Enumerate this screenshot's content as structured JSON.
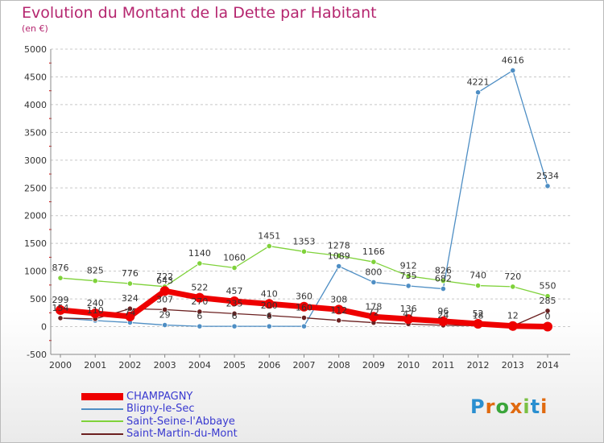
{
  "header": {
    "title": "Evolution du Montant de la Dette par Habitant",
    "subtitle": "(en €)"
  },
  "logo": {
    "text": "Proxiti"
  },
  "chart_data": {
    "type": "line",
    "title": "Evolution du Montant de la Dette par Habitant",
    "subtitle": "(en €)",
    "xlabel": "",
    "ylabel": "",
    "x": [
      "2000",
      "2001",
      "2002",
      "2003",
      "2004",
      "2005",
      "2006",
      "2007",
      "2008",
      "2009",
      "2010",
      "2011",
      "2012",
      "2013",
      "2014"
    ],
    "ylim": [
      -500,
      5000
    ],
    "yticks": [
      "-500",
      "0",
      "500",
      "1000",
      "1500",
      "2000",
      "2500",
      "3000",
      "3500",
      "4000",
      "4500",
      "5000"
    ],
    "grid": "horizontal dashed",
    "legend": "bottom-left",
    "series": [
      {
        "name": "CHAMPAGNY",
        "color": "#ee0000",
        "values": [
          299,
          240,
          184,
          643,
          522,
          457,
          410,
          360,
          308,
          178,
          136,
          96,
          52,
          12,
          0
        ],
        "labels": [
          "299",
          "240",
          "",
          "643",
          "522",
          "457",
          "410",
          "360",
          "308",
          "178",
          "136",
          "96",
          "52",
          "12",
          "0"
        ]
      },
      {
        "name": "Bligny-le-Sec",
        "color": "#4e8ec4",
        "values": [
          154,
          110,
          74,
          29,
          6,
          6,
          6,
          6,
          1089,
          800,
          735,
          682,
          4221,
          4616,
          2534
        ],
        "labels": [
          "154",
          "110",
          "74",
          "29",
          "6",
          "6",
          "6",
          "",
          "1089",
          "800",
          "735",
          "682",
          "4221",
          "4616",
          "2534"
        ]
      },
      {
        "name": "Saint-Seine-l'Abbaye",
        "color": "#7fd23a",
        "values": [
          876,
          825,
          776,
          722,
          1140,
          1060,
          1451,
          1353,
          1278,
          1166,
          912,
          826,
          740,
          720,
          550
        ],
        "labels": [
          "876",
          "825",
          "776",
          "722",
          "1140",
          "1060",
          "1451",
          "1353",
          "1278",
          "1166",
          "912",
          "826",
          "740",
          "720",
          "550"
        ]
      },
      {
        "name": "Saint-Martin-du-Mont",
        "color": "#6b2020",
        "values": [
          154,
          140,
          324,
          307,
          270,
          235,
          200,
          160,
          112,
          72,
          47,
          24,
          18,
          12,
          285
        ],
        "labels": [
          "",
          "",
          "324",
          "307",
          "270",
          "235",
          "200",
          "160",
          "112",
          "72",
          "47",
          "24",
          "18",
          "",
          "285"
        ]
      }
    ]
  }
}
